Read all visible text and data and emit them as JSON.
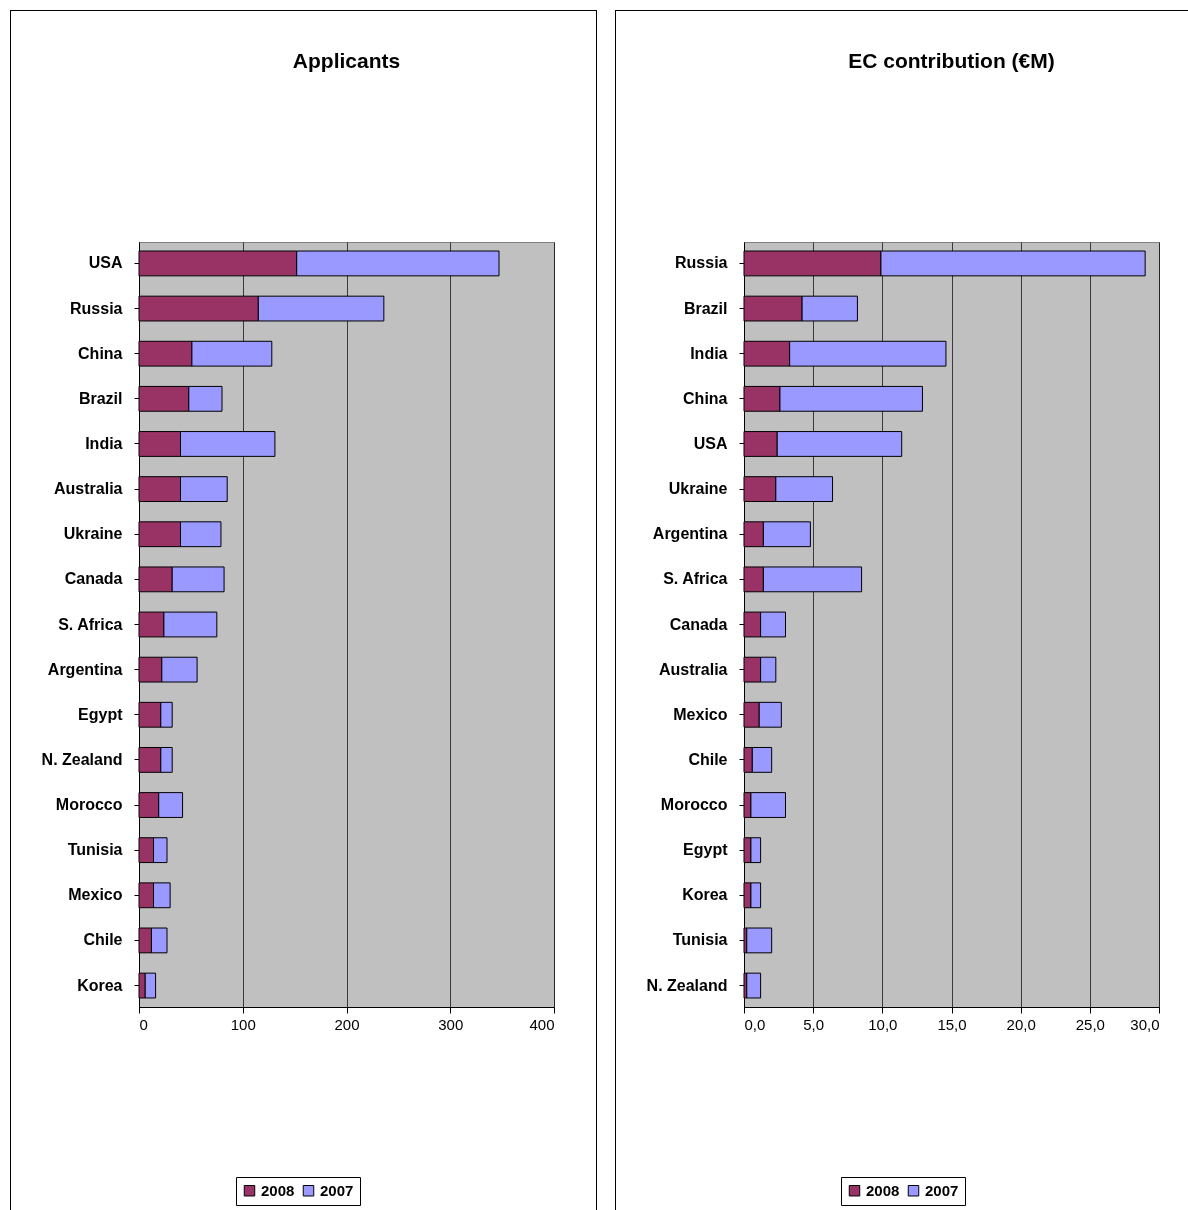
{
  "chart_data": [
    {
      "type": "bar",
      "title": "Applicants",
      "orientation": "horizontal",
      "stacked": true,
      "grid": "x",
      "legend": "bottom",
      "categories": [
        "USA",
        "Russia",
        "China",
        "Brazil",
        "India",
        "Australia",
        "Ukraine",
        "Canada",
        "S. Africa",
        "Argentina",
        "Egypt",
        "N. Zealand",
        "Morocco",
        "Tunisia",
        "Mexico",
        "Chile",
        "Korea"
      ],
      "xlim": [
        0,
        400
      ],
      "xticks": [
        0,
        100,
        200,
        300,
        400
      ],
      "series": [
        {
          "name": "2008",
          "color": "#993366",
          "values": [
            152,
            115,
            51,
            48,
            40,
            40,
            40,
            32,
            24,
            22,
            21,
            21,
            19,
            14,
            14,
            12,
            6
          ]
        },
        {
          "name": "2007",
          "color": "#9999ff",
          "values": [
            195,
            121,
            77,
            32,
            91,
            45,
            39,
            50,
            51,
            34,
            11,
            11,
            23,
            13,
            16,
            15,
            10
          ]
        }
      ]
    },
    {
      "type": "bar",
      "title": "EC contribution (€M)",
      "orientation": "horizontal",
      "stacked": true,
      "grid": "x",
      "legend": "bottom",
      "categories": [
        "Russia",
        "Brazil",
        "India",
        "China",
        "USA",
        "Ukraine",
        "Argentina",
        "S. Africa",
        "Canada",
        "Australia",
        "Mexico",
        "Chile",
        "Morocco",
        "Egypt",
        "Korea",
        "Tunisia",
        "N. Zealand"
      ],
      "xlim": [
        0,
        30
      ],
      "xticks": [
        {
          "value": 0,
          "label": "0,0"
        },
        {
          "value": 5,
          "label": "5,0"
        },
        {
          "value": 10,
          "label": "10,0"
        },
        {
          "value": 15,
          "label": "15,0"
        },
        {
          "value": 20,
          "label": "20,0"
        },
        {
          "value": 25,
          "label": "25,0"
        },
        {
          "value": 30,
          "label": "30,0"
        }
      ],
      "series": [
        {
          "name": "2008",
          "color": "#993366",
          "values": [
            9.9,
            4.2,
            3.3,
            2.6,
            2.4,
            2.3,
            1.4,
            1.4,
            1.2,
            1.2,
            1.1,
            0.6,
            0.5,
            0.5,
            0.5,
            0.2,
            0.2
          ]
        },
        {
          "name": "2007",
          "color": "#9999ff",
          "values": [
            19.1,
            4.0,
            11.3,
            10.3,
            9.0,
            4.1,
            3.4,
            7.1,
            1.8,
            1.1,
            1.6,
            1.4,
            2.5,
            0.7,
            0.7,
            1.8,
            1.0
          ]
        }
      ]
    }
  ]
}
